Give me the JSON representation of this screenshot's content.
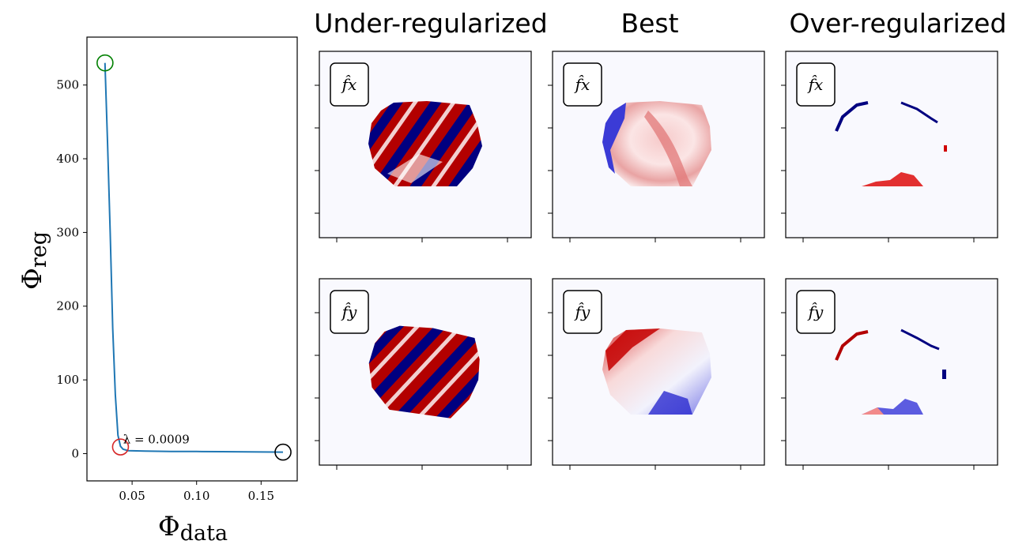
{
  "column_titles": [
    "Under-regularized",
    "Best",
    "Over-regularized"
  ],
  "row_labels": [
    "f̂x",
    "f̂y"
  ],
  "chart_data": [
    {
      "type": "line",
      "title": "",
      "xlabel": "Φdata",
      "ylabel": "Φreg",
      "xlim": [
        0.015,
        0.178
      ],
      "ylim": [
        -37,
        565
      ],
      "xticks": [
        0.05,
        0.1,
        0.15
      ],
      "xtick_labels": [
        "0.05",
        "0.10",
        "0.15"
      ],
      "yticks": [
        0,
        100,
        200,
        300,
        400,
        500
      ],
      "ytick_labels": [
        "0",
        "100",
        "200",
        "300",
        "400",
        "500"
      ],
      "series": [
        {
          "color": "#1f77b4",
          "x": [
            0.029,
            0.031,
            0.033,
            0.035,
            0.037,
            0.039,
            0.041,
            0.043,
            0.047,
            0.06,
            0.08,
            0.1,
            0.12,
            0.14,
            0.16,
            0.167
          ],
          "y": [
            530,
            420,
            300,
            170,
            80,
            25,
            10,
            6,
            4,
            3.5,
            3,
            2.8,
            2.6,
            2.4,
            2.1,
            2
          ]
        }
      ],
      "markers": [
        {
          "x": 0.029,
          "y": 530,
          "color": "#008000",
          "label": "under-regularized"
        },
        {
          "x": 0.041,
          "y": 9,
          "color": "#d62728",
          "label": "best"
        },
        {
          "x": 0.167,
          "y": 2,
          "color": "#000000",
          "label": "over-regularized"
        }
      ],
      "annotation": {
        "text": "λ = 0.0009",
        "x": 0.043,
        "y": 14
      }
    },
    {
      "type": "heatmap",
      "title": "Under-regularized (row f̂x, f̂y)",
      "colormap": "seismic (blue-white-red)",
      "panels": [
        "f̂x",
        "f̂y"
      ],
      "description_values": "saturated red/blue blob within an octagonal mask"
    },
    {
      "type": "heatmap",
      "title": "Best (row f̂x, f̂y)",
      "colormap": "seismic (blue-white-red)",
      "panels": [
        "f̂x",
        "f̂y"
      ],
      "description_values": "moderate red/blue structure within octagonal mask"
    },
    {
      "type": "heatmap",
      "title": "Over-regularized (row f̂x, f̂y)",
      "colormap": "seismic (blue-white-red)",
      "panels": [
        "f̂x",
        "f̂y"
      ],
      "description_values": "mostly white, edges only"
    }
  ],
  "colors": {
    "line": "#1f77b4",
    "background_panel": "#f9f9fe",
    "red": "#b30000",
    "blue": "#000080"
  }
}
